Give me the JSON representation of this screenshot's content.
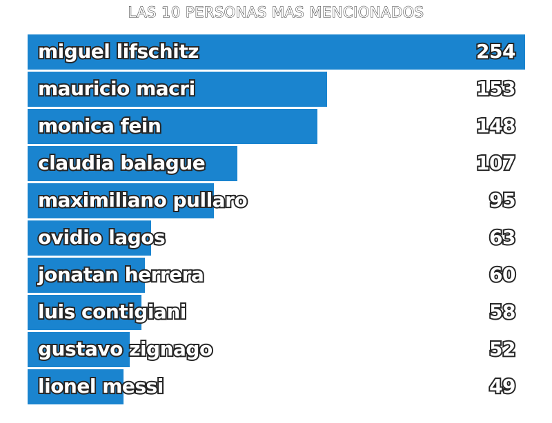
{
  "chart_data": {
    "type": "bar",
    "orientation": "horizontal",
    "title": "LAS 10 PERSONAS MAS MENCIONADOS",
    "bar_color": "#1a84cf",
    "categories": [
      "miguel lifschitz",
      "mauricio macri",
      "monica fein",
      "claudia balague",
      "maximiliano pullaro",
      "ovidio lagos",
      "jonatan herrera",
      "luis contigiani",
      "gustavo zignago",
      "lionel messi"
    ],
    "values": [
      254,
      153,
      148,
      107,
      95,
      63,
      60,
      58,
      52,
      49
    ],
    "xlim": [
      0,
      254
    ]
  }
}
